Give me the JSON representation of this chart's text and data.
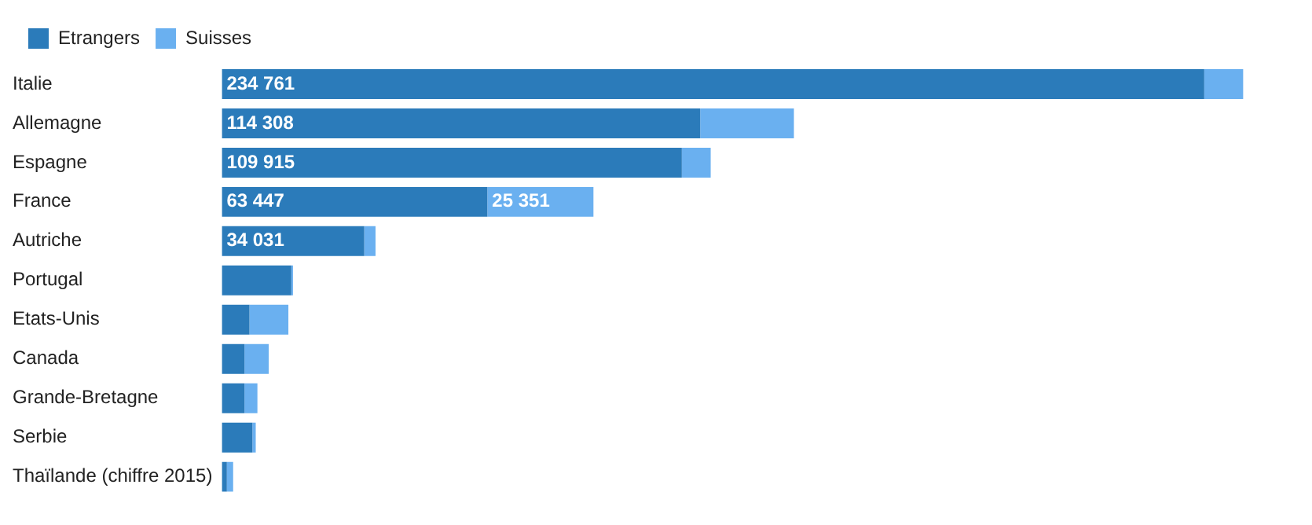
{
  "chart_data": {
    "type": "bar",
    "orientation": "horizontal",
    "stacked": true,
    "legend": "top left",
    "grid": false,
    "tick_labels": "y",
    "categories": [
      "Italie",
      "Allemagne",
      "Espagne",
      "France",
      "Autriche",
      "Portugal",
      "Etats-Unis",
      "Canada",
      "Grande-Bretagne",
      "Serbie",
      "Thaïlande (chiffre 2015)"
    ],
    "series": [
      {
        "name": "Etrangers",
        "color": "#2b7bba",
        "values": [
          234761,
          114308,
          109915,
          63447,
          34031,
          16600,
          6600,
          5400,
          5400,
          7300,
          1200
        ],
        "value_labels": [
          "234 761",
          "114 308",
          "109 915",
          "63 447",
          "34 031",
          null,
          null,
          null,
          null,
          null,
          null
        ]
      },
      {
        "name": "Suisses",
        "color": "#6ab0f0",
        "values": [
          9300,
          22400,
          6900,
          25351,
          2700,
          400,
          9300,
          5800,
          3100,
          800,
          1500
        ],
        "value_labels": [
          null,
          null,
          null,
          "25 351",
          null,
          null,
          null,
          null,
          null,
          null,
          null
        ]
      }
    ]
  }
}
